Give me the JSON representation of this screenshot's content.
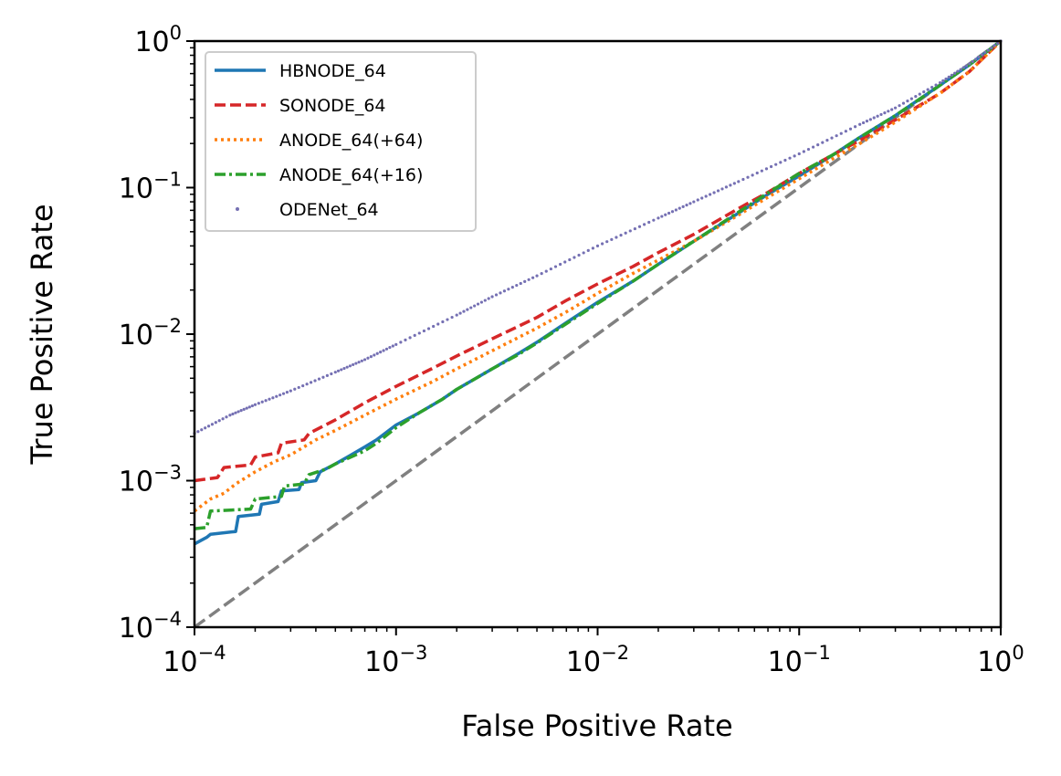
{
  "chart_data": {
    "type": "line",
    "title": "",
    "xlabel": "False Positive Rate",
    "ylabel": "True Positive Rate",
    "xscale": "log",
    "yscale": "log",
    "xlim": [
      0.0001,
      1
    ],
    "ylim": [
      0.0001,
      1
    ],
    "legend_position": "top-left",
    "grid": false,
    "x_ticks": [
      {
        "value": 0.0001,
        "base": "10",
        "exp": "−4"
      },
      {
        "value": 0.001,
        "base": "10",
        "exp": "−3"
      },
      {
        "value": 0.01,
        "base": "10",
        "exp": "−2"
      },
      {
        "value": 0.1,
        "base": "10",
        "exp": "−1"
      },
      {
        "value": 1,
        "base": "10",
        "exp": "0"
      }
    ],
    "y_ticks": [
      {
        "value": 0.0001,
        "base": "10",
        "exp": "−4"
      },
      {
        "value": 0.001,
        "base": "10",
        "exp": "−3"
      },
      {
        "value": 0.01,
        "base": "10",
        "exp": "−2"
      },
      {
        "value": 0.1,
        "base": "10",
        "exp": "−1"
      },
      {
        "value": 1,
        "base": "10",
        "exp": "0"
      }
    ],
    "reference_line": {
      "name": "chance-diagonal",
      "color": "#808080",
      "x": [
        0.0001,
        1
      ],
      "y": [
        0.0001,
        1
      ]
    },
    "series": [
      {
        "name": "HBNODE_64",
        "color": "#1f77b4",
        "style": "solid",
        "x": [
          0.0001,
          0.000115,
          0.00012,
          0.00016,
          0.000165,
          0.00021,
          0.000215,
          0.00026,
          0.00027,
          0.00033,
          0.00034,
          0.0004,
          0.00042,
          0.0005,
          0.0006,
          0.0007,
          0.0008,
          0.001,
          0.0013,
          0.0017,
          0.002,
          0.003,
          0.004,
          0.005,
          0.007,
          0.01,
          0.015,
          0.02,
          0.03,
          0.05,
          0.07,
          0.1,
          0.15,
          0.2,
          0.3,
          0.5,
          0.7,
          1
        ],
        "y": [
          0.00037,
          0.00041,
          0.00043,
          0.00045,
          0.00057,
          0.00059,
          0.00069,
          0.00072,
          0.00085,
          0.00087,
          0.00097,
          0.001,
          0.00115,
          0.0013,
          0.0015,
          0.0017,
          0.0019,
          0.0024,
          0.0029,
          0.0036,
          0.0042,
          0.0058,
          0.0073,
          0.0088,
          0.012,
          0.0165,
          0.023,
          0.03,
          0.043,
          0.067,
          0.09,
          0.12,
          0.17,
          0.22,
          0.31,
          0.5,
          0.69,
          1
        ]
      },
      {
        "name": "SONODE_64",
        "color": "#d62728",
        "style": "dashed",
        "x": [
          0.0001,
          0.00013,
          0.00014,
          0.00019,
          0.0002,
          0.00026,
          0.00027,
          0.00035,
          0.00037,
          0.0005,
          0.0007,
          0.001,
          0.0015,
          0.002,
          0.003,
          0.005,
          0.007,
          0.01,
          0.015,
          0.02,
          0.03,
          0.05,
          0.07,
          0.1,
          0.15,
          0.2,
          0.3,
          0.5,
          0.7,
          1
        ],
        "y": [
          0.001,
          0.00105,
          0.00123,
          0.00128,
          0.00145,
          0.00155,
          0.0018,
          0.0019,
          0.0021,
          0.0026,
          0.0034,
          0.0044,
          0.0058,
          0.0071,
          0.0093,
          0.013,
          0.017,
          0.022,
          0.029,
          0.036,
          0.048,
          0.072,
          0.093,
          0.125,
          0.17,
          0.21,
          0.29,
          0.44,
          0.62,
          1
        ]
      },
      {
        "name": "ANODE_64(+64)",
        "color": "#ff7f0e",
        "style": "dotted",
        "x": [
          0.0001,
          0.00012,
          0.00014,
          0.00016,
          0.0002,
          0.00025,
          0.0003,
          0.0004,
          0.0005,
          0.0007,
          0.001,
          0.0015,
          0.002,
          0.003,
          0.005,
          0.007,
          0.01,
          0.015,
          0.02,
          0.03,
          0.05,
          0.07,
          0.1,
          0.15,
          0.2,
          0.3,
          0.5,
          0.7,
          1
        ],
        "y": [
          0.00062,
          0.00075,
          0.00082,
          0.00095,
          0.00115,
          0.00135,
          0.0015,
          0.0019,
          0.0022,
          0.0028,
          0.0036,
          0.0047,
          0.0058,
          0.0077,
          0.011,
          0.0142,
          0.019,
          0.026,
          0.032,
          0.043,
          0.065,
          0.086,
          0.115,
          0.16,
          0.2,
          0.28,
          0.44,
          0.62,
          1
        ]
      },
      {
        "name": "ANODE_64(+16)",
        "color": "#2ca02c",
        "style": "dashdot",
        "x": [
          0.0001,
          0.000115,
          0.00012,
          0.00019,
          0.0002,
          0.00027,
          0.00028,
          0.00035,
          0.00037,
          0.00045,
          0.0005,
          0.0007,
          0.0008,
          0.001,
          0.0013,
          0.0017,
          0.002,
          0.003,
          0.004,
          0.005,
          0.007,
          0.01,
          0.015,
          0.02,
          0.03,
          0.05,
          0.07,
          0.1,
          0.15,
          0.2,
          0.3,
          0.5,
          0.7,
          1
        ],
        "y": [
          0.00047,
          0.00048,
          0.00062,
          0.00064,
          0.00075,
          0.00078,
          0.00092,
          0.00095,
          0.0011,
          0.0012,
          0.0013,
          0.0016,
          0.0018,
          0.0023,
          0.0029,
          0.0036,
          0.0042,
          0.0058,
          0.0072,
          0.0087,
          0.0118,
          0.0162,
          0.023,
          0.03,
          0.043,
          0.068,
          0.092,
          0.125,
          0.17,
          0.22,
          0.31,
          0.5,
          0.69,
          1
        ]
      },
      {
        "name": "ODENet_64",
        "color": "#7570b3",
        "style": "points",
        "x": [
          0.0001,
          0.00015,
          0.0002,
          0.0003,
          0.0005,
          0.0007,
          0.001,
          0.002,
          0.003,
          0.005,
          0.01,
          0.02,
          0.03,
          0.05,
          0.1,
          0.2,
          0.3,
          0.5,
          0.7,
          1
        ],
        "y": [
          0.0021,
          0.0028,
          0.0033,
          0.0041,
          0.0055,
          0.0067,
          0.0085,
          0.0135,
          0.018,
          0.025,
          0.04,
          0.062,
          0.08,
          0.11,
          0.17,
          0.27,
          0.35,
          0.52,
          0.7,
          1
        ]
      }
    ]
  }
}
